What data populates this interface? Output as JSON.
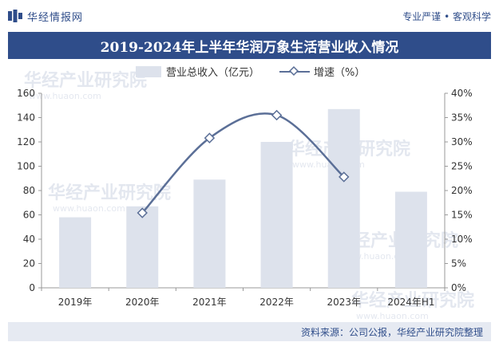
{
  "header": {
    "brand_name": "华经情报网",
    "slogan": "专业严谨 • 客观科学"
  },
  "footer": {
    "source": "资料来源：公司公报，华经产业研究院整理"
  },
  "watermark": {
    "text": "华经产业研究院",
    "url": "www.huaon.com"
  },
  "colors": {
    "brand": "#2f4d8a",
    "bar": "#dde2ec",
    "line": "#5b6f97"
  },
  "chart_data": {
    "type": "bar",
    "title": "2019-2024年上半年华润万象生活营业收入情况",
    "categories": [
      "2019年",
      "2020年",
      "2021年",
      "2022年",
      "2023年",
      "2024年H1"
    ],
    "series": [
      {
        "name": "营业总收入（亿元）",
        "type": "bar",
        "axis": "left",
        "values": [
          58,
          67,
          89,
          120,
          147,
          79
        ]
      },
      {
        "name": "增速（%）",
        "type": "line",
        "axis": "right",
        "values": [
          null,
          15.4,
          30.8,
          35.5,
          22.8,
          null
        ]
      }
    ],
    "y_left": {
      "min": 0,
      "max": 160,
      "step": 20,
      "ticks": [
        "0",
        "20",
        "40",
        "60",
        "80",
        "100",
        "120",
        "140",
        "160"
      ]
    },
    "y_right": {
      "min": 0,
      "max": 40,
      "step": 5,
      "ticks": [
        "0%",
        "5%",
        "10%",
        "15%",
        "20%",
        "25%",
        "30%",
        "35%",
        "40%"
      ]
    },
    "legend_position": "top-center",
    "grid": false
  }
}
